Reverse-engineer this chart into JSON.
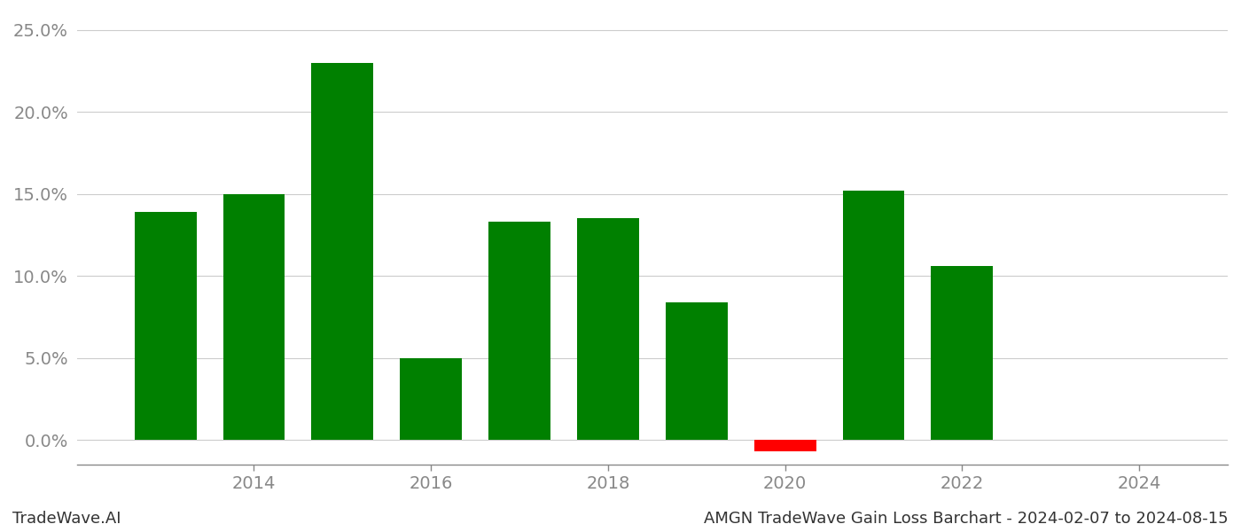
{
  "years": [
    2013,
    2014,
    2015,
    2016,
    2017,
    2018,
    2019,
    2020,
    2021,
    2022,
    2023
  ],
  "values": [
    0.139,
    0.15,
    0.23,
    0.05,
    0.133,
    0.135,
    0.084,
    -0.007,
    0.152,
    0.106,
    0.0
  ],
  "colors": [
    "#008000",
    "#008000",
    "#008000",
    "#008000",
    "#008000",
    "#008000",
    "#008000",
    "#ff0000",
    "#008000",
    "#008000",
    "#008000"
  ],
  "bar_width": 0.7,
  "xlim": [
    2012.0,
    2025.0
  ],
  "ylim": [
    -0.015,
    0.26
  ],
  "yticks": [
    0.0,
    0.05,
    0.1,
    0.15,
    0.2,
    0.25
  ],
  "xticks": [
    2014,
    2016,
    2018,
    2020,
    2022,
    2024
  ],
  "xlabel": "",
  "ylabel": "",
  "title": "",
  "footer_left": "TradeWave.AI",
  "footer_right": "AMGN TradeWave Gain Loss Barchart - 2024-02-07 to 2024-08-15",
  "background_color": "#ffffff",
  "grid_color": "#cccccc",
  "axis_color": "#888888",
  "tick_label_color": "#888888",
  "footer_fontsize": 13,
  "tick_fontsize": 14
}
